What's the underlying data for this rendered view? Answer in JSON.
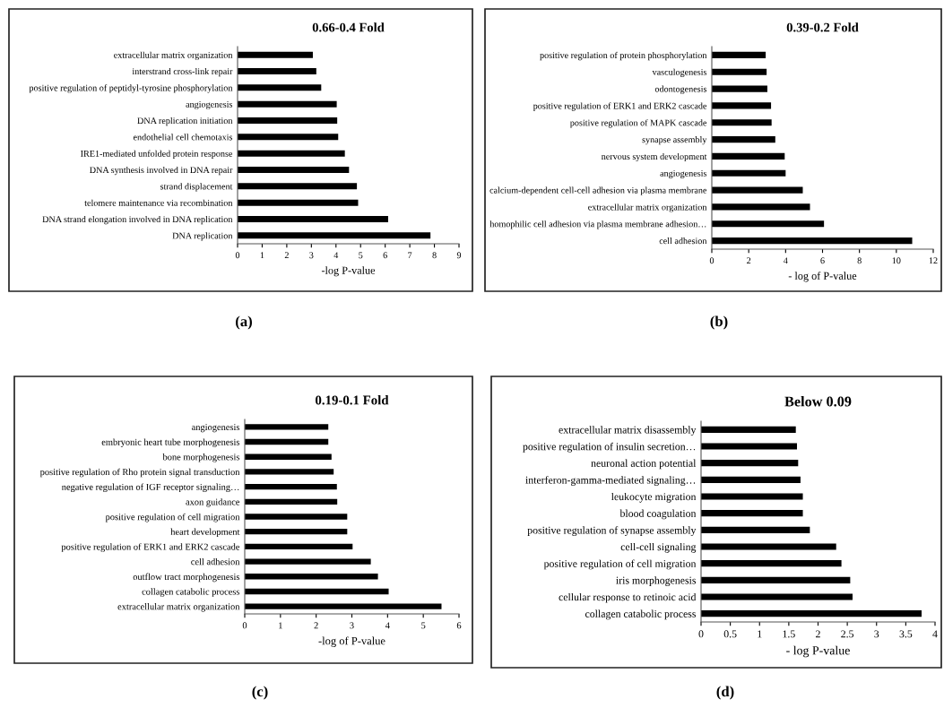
{
  "chart_data": [
    {
      "type": "bar",
      "orientation": "horizontal",
      "title": "0.66-0.4 Fold",
      "xlabel": "-log P-value",
      "color": "#000000",
      "categories": [
        "extracellular matrix organization",
        "interstrand cross-link repair",
        "positive regulation of peptidyl-tyrosine phosphorylation",
        "angiogenesis",
        "DNA replication initiation",
        "endothelial cell chemotaxis",
        "IRE1-mediated unfolded protein response",
        "DNA synthesis involved in DNA repair",
        "strand displacement",
        "telomere maintenance via recombination",
        "DNA strand elongation involved in DNA replication",
        "DNA replication"
      ],
      "values": [
        3.06,
        3.2,
        3.4,
        4.03,
        4.05,
        4.09,
        4.36,
        4.53,
        4.85,
        4.9,
        6.12,
        7.84
      ],
      "xlim": [
        0,
        9
      ],
      "xticks": [
        0,
        1,
        2,
        3,
        4,
        5,
        6,
        7,
        8,
        9
      ],
      "grid": false,
      "legend": false,
      "annotations": [
        "(a)"
      ]
    },
    {
      "type": "bar",
      "orientation": "horizontal",
      "title": "0.39-0.2 Fold",
      "xlabel": "- log of P-value",
      "color": "#000000",
      "categories": [
        "positive regulation of protein phosphorylation",
        "vasculogenesis",
        "odontogenesis",
        "positive regulation of ERK1 and ERK2 cascade",
        "positive regulation of MAPK cascade",
        "synapse assembly",
        "nervous system development",
        "angiogenesis",
        "calcium-dependent cell-cell adhesion via plasma membrane",
        "extracellular matrix organization",
        "homophilic cell adhesion via plasma membrane adhesion…",
        "cell adhesion"
      ],
      "values": [
        2.92,
        2.97,
        3.01,
        3.21,
        3.24,
        3.44,
        3.95,
        4.0,
        4.93,
        5.32,
        6.08,
        10.86
      ],
      "xlim": [
        0,
        12
      ],
      "xticks": [
        0,
        2,
        4,
        6,
        8,
        10,
        12
      ],
      "grid": false,
      "legend": false,
      "annotations": [
        "(b)"
      ]
    },
    {
      "type": "bar",
      "orientation": "horizontal",
      "title": "0.19-0.1 Fold",
      "xlabel": "-log of P-value",
      "color": "#000000",
      "categories": [
        "angiogenesis",
        "embryonic heart tube morphogenesis",
        "bone morphogenesis",
        "positive regulation of Rho protein signal transduction",
        "negative regulation of IGF receptor signaling…",
        "axon guidance",
        "positive regulation of cell migration",
        "heart development",
        "positive regulation of ERK1 and ERK2 cascade",
        "cell adhesion",
        "outflow tract morphogenesis",
        "collagen catabolic process",
        "extracellular matrix organization"
      ],
      "values": [
        2.34,
        2.34,
        2.43,
        2.49,
        2.58,
        2.59,
        2.87,
        2.87,
        3.02,
        3.53,
        3.73,
        4.03,
        5.51
      ],
      "xlim": [
        0,
        6
      ],
      "xticks": [
        0,
        1,
        2,
        3,
        4,
        5,
        6
      ],
      "grid": false,
      "legend": false,
      "annotations": [
        "(c)"
      ]
    },
    {
      "type": "bar",
      "orientation": "horizontal",
      "title": "Below 0.09",
      "xlabel": "- log P-value",
      "color": "#000000",
      "categories": [
        "extracellular matrix disassembly",
        "positive regulation of insulin secretion…",
        "neuronal action potential",
        "interferon-gamma-mediated signaling…",
        "leukocyte migration",
        "blood coagulation",
        "positive regulation of synapse assembly",
        "cell-cell signaling",
        "positive regulation of cell migration",
        "iris morphogenesis",
        "cellular response to retinoic acid",
        "collagen catabolic process"
      ],
      "values": [
        1.62,
        1.64,
        1.66,
        1.7,
        1.74,
        1.74,
        1.86,
        2.31,
        2.4,
        2.55,
        2.59,
        3.77
      ],
      "xlim": [
        0,
        4
      ],
      "xticks": [
        0,
        0.5,
        1,
        1.5,
        2,
        2.5,
        3,
        3.5,
        4
      ],
      "grid": false,
      "legend": false,
      "annotations": [
        "(d)"
      ]
    }
  ]
}
